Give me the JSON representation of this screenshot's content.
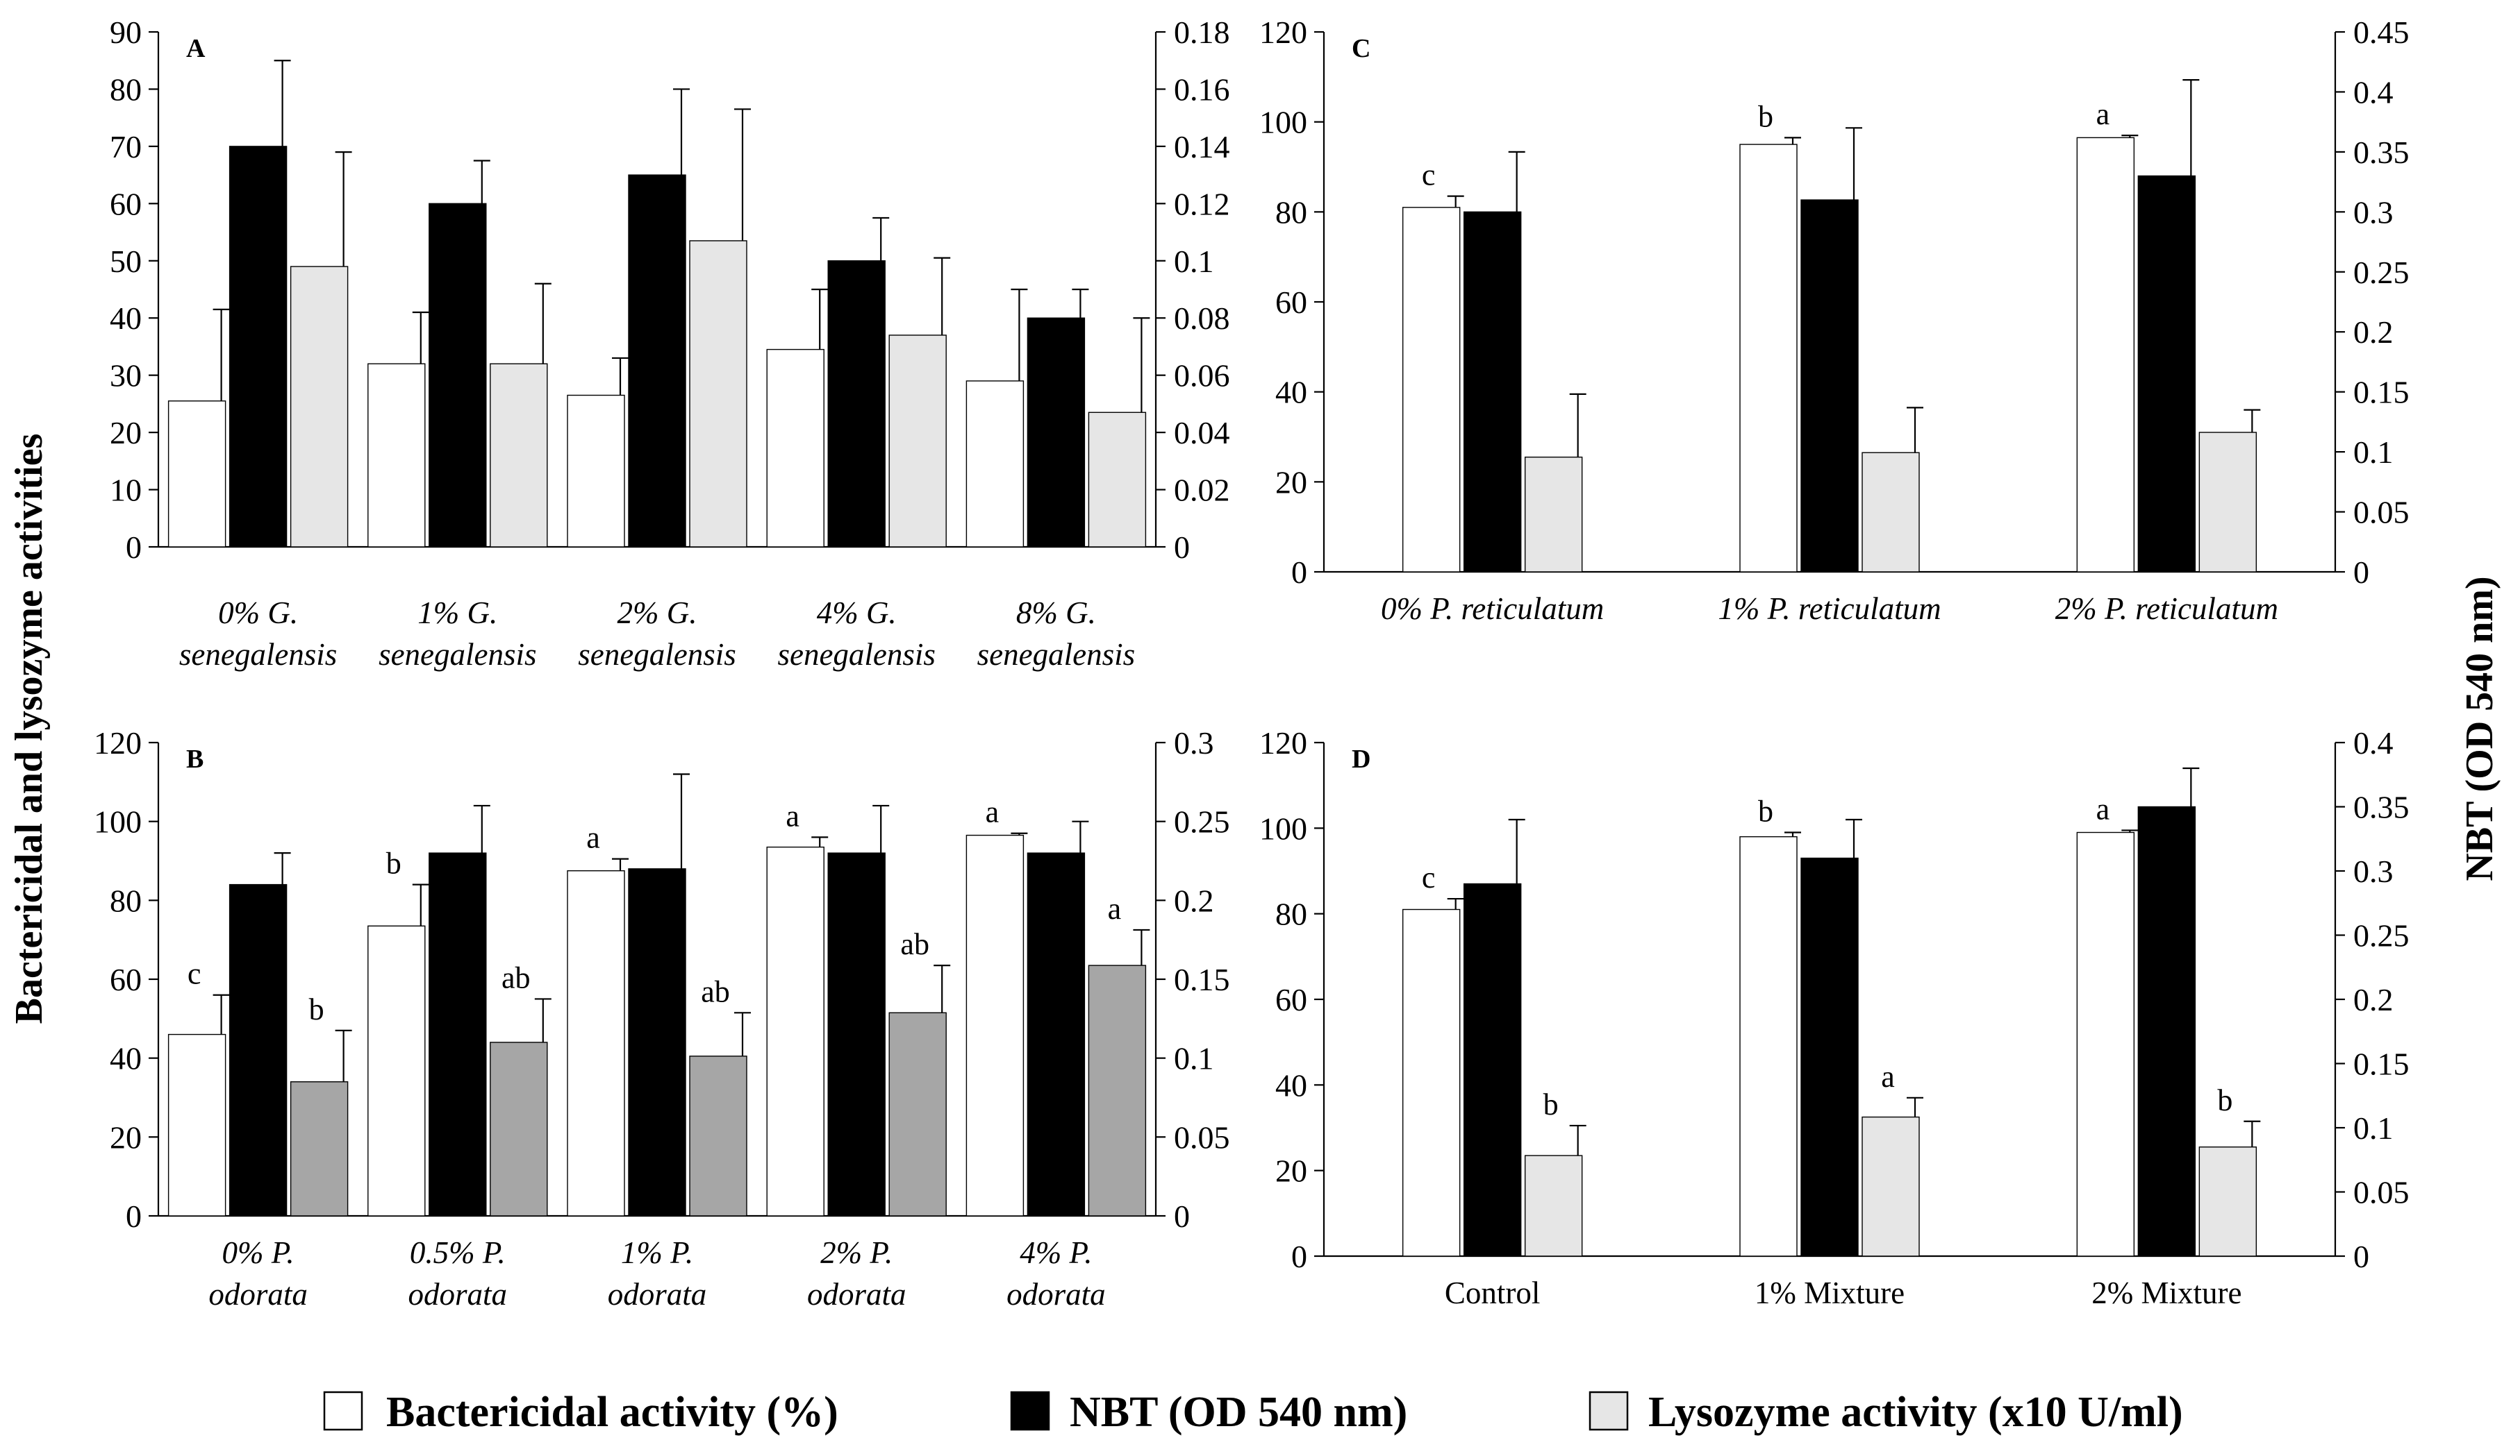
{
  "figure": {
    "left_axis_label": "Bactericidal and lysozyme activities",
    "right_axis_label": "NBT (OD 540 nm)"
  },
  "legend": [
    {
      "label": "Bactericidal activity (%)",
      "color": "#ffffff"
    },
    {
      "label": "NBT (OD 540 nm)",
      "color": "#000000"
    },
    {
      "label": "Lysozyme activity (x10 U/ml)",
      "color": "#e6e6e6"
    }
  ],
  "chart_data": [
    {
      "panel": "A",
      "type": "bar",
      "categories": [
        [
          "0% G.",
          "senegalensis"
        ],
        [
          "1% G.",
          "senegalensis"
        ],
        [
          "2% G.",
          "senegalensis"
        ],
        [
          "4% G.",
          "senegalensis"
        ],
        [
          "8% G.",
          "senegalensis"
        ]
      ],
      "italic_categories": true,
      "ylim": [
        0,
        90
      ],
      "yticks": [
        0,
        10,
        20,
        30,
        40,
        50,
        60,
        70,
        80,
        90
      ],
      "y2lim": [
        0,
        0.18
      ],
      "y2ticks": [
        "0",
        "0.02",
        "0.04",
        "0.06",
        "0.08",
        "0.1",
        "0.12",
        "0.14",
        "0.16",
        "0.18"
      ],
      "lysozyme_color": "#e6e6e6",
      "series": [
        {
          "name": "Bactericidal activity (%)",
          "values": [
            25.5,
            32,
            26.5,
            34.5,
            29
          ],
          "errors": [
            16,
            9,
            6.5,
            10.5,
            16
          ],
          "labels": [
            "",
            "",
            "",
            "",
            ""
          ]
        },
        {
          "name": "NBT (OD 540 nm)",
          "values": [
            0.14,
            0.12,
            0.13,
            0.1,
            0.08
          ],
          "errors": [
            0.03,
            0.015,
            0.03,
            0.015,
            0.01
          ],
          "labels": [
            "",
            "",
            "",
            "",
            ""
          ]
        },
        {
          "name": "Lysozyme activity (x10 U/ml)",
          "values": [
            49,
            32,
            53.5,
            37,
            23.5
          ],
          "errors": [
            20,
            14,
            23,
            13.5,
            16.5
          ],
          "labels": [
            "",
            "",
            "",
            "",
            ""
          ]
        }
      ]
    },
    {
      "panel": "B",
      "type": "bar",
      "categories": [
        [
          "0% P.",
          "odorata"
        ],
        [
          "0.5% P.",
          "odorata"
        ],
        [
          "1% P.",
          "odorata"
        ],
        [
          "2% P.",
          "odorata"
        ],
        [
          "4% P.",
          "odorata"
        ]
      ],
      "italic_categories": true,
      "ylim": [
        0,
        120
      ],
      "yticks": [
        0,
        20,
        40,
        60,
        80,
        100,
        120
      ],
      "y2lim": [
        0,
        0.3
      ],
      "y2ticks": [
        "0",
        "0.05",
        "0.1",
        "0.15",
        "0.2",
        "0.25",
        "0.3"
      ],
      "lysozyme_color": "#a6a6a6",
      "series": [
        {
          "name": "Bactericidal activity (%)",
          "values": [
            46,
            73.5,
            87.5,
            93.5,
            96.5
          ],
          "errors": [
            10,
            10.5,
            3,
            2.5,
            0.5
          ],
          "labels": [
            "c",
            "b",
            "a",
            "a",
            "a"
          ]
        },
        {
          "name": "NBT (OD 540 nm)",
          "values": [
            0.21,
            0.23,
            0.22,
            0.23,
            0.23
          ],
          "errors": [
            0.02,
            0.03,
            0.06,
            0.03,
            0.02
          ],
          "labels": [
            "",
            "",
            "",
            "",
            ""
          ]
        },
        {
          "name": "Lysozyme activity (x10 U/ml)",
          "values": [
            34,
            44,
            40.5,
            51.5,
            63.5
          ],
          "errors": [
            13,
            11,
            11,
            12,
            9
          ],
          "labels": [
            "b",
            "ab",
            "ab",
            "ab",
            "a"
          ]
        }
      ]
    },
    {
      "panel": "C",
      "type": "bar",
      "categories": [
        [
          "0% P. reticulatum"
        ],
        [
          "1% P. reticulatum"
        ],
        [
          "2% P. reticulatum"
        ]
      ],
      "italic_categories": true,
      "ylim": [
        0,
        120
      ],
      "yticks": [
        0,
        20,
        40,
        60,
        80,
        100,
        120
      ],
      "y2lim": [
        0,
        0.45
      ],
      "y2ticks": [
        "0",
        "0.05",
        "0.1",
        "0.15",
        "0.2",
        "0.25",
        "0.3",
        "0.35",
        "0.4",
        "0.45"
      ],
      "lysozyme_color": "#e6e6e6",
      "series": [
        {
          "name": "Bactericidal activity (%)",
          "values": [
            81,
            95,
            96.5
          ],
          "errors": [
            2.5,
            1.5,
            0.5
          ],
          "labels": [
            "c",
            "b",
            "a"
          ]
        },
        {
          "name": "NBT (OD 540 nm)",
          "values": [
            0.3,
            0.31,
            0.33
          ],
          "errors": [
            0.05,
            0.06,
            0.08
          ],
          "labels": [
            "",
            "",
            ""
          ]
        },
        {
          "name": "Lysozyme activity (x10 U/ml)",
          "values": [
            25.5,
            26.5,
            31
          ],
          "errors": [
            14,
            10,
            5
          ],
          "labels": [
            "",
            "",
            ""
          ]
        }
      ]
    },
    {
      "panel": "D",
      "type": "bar",
      "categories": [
        [
          "Control"
        ],
        [
          "1% Mixture"
        ],
        [
          "2% Mixture"
        ]
      ],
      "italic_categories": false,
      "ylim": [
        0,
        120
      ],
      "yticks": [
        0,
        20,
        40,
        60,
        80,
        100,
        120
      ],
      "y2lim": [
        0,
        0.4
      ],
      "y2ticks": [
        "0",
        "0.05",
        "0.1",
        "0.15",
        "0.2",
        "0.25",
        "0.3",
        "0.35",
        "0.4"
      ],
      "lysozyme_color": "#e6e6e6",
      "series": [
        {
          "name": "Bactericidal activity (%)",
          "values": [
            81,
            98,
            99
          ],
          "errors": [
            2.5,
            1,
            0.5
          ],
          "labels": [
            "c",
            "b",
            "a"
          ]
        },
        {
          "name": "NBT (OD 540 nm)",
          "values": [
            0.29,
            0.31,
            0.35
          ],
          "errors": [
            0.05,
            0.03,
            0.03
          ],
          "labels": [
            "",
            "",
            ""
          ]
        },
        {
          "name": "Lysozyme activity (x10 U/ml)",
          "values": [
            23.5,
            32.5,
            25.5
          ],
          "errors": [
            7,
            4.5,
            6
          ],
          "labels": [
            "b",
            "a",
            "b"
          ]
        }
      ]
    }
  ]
}
